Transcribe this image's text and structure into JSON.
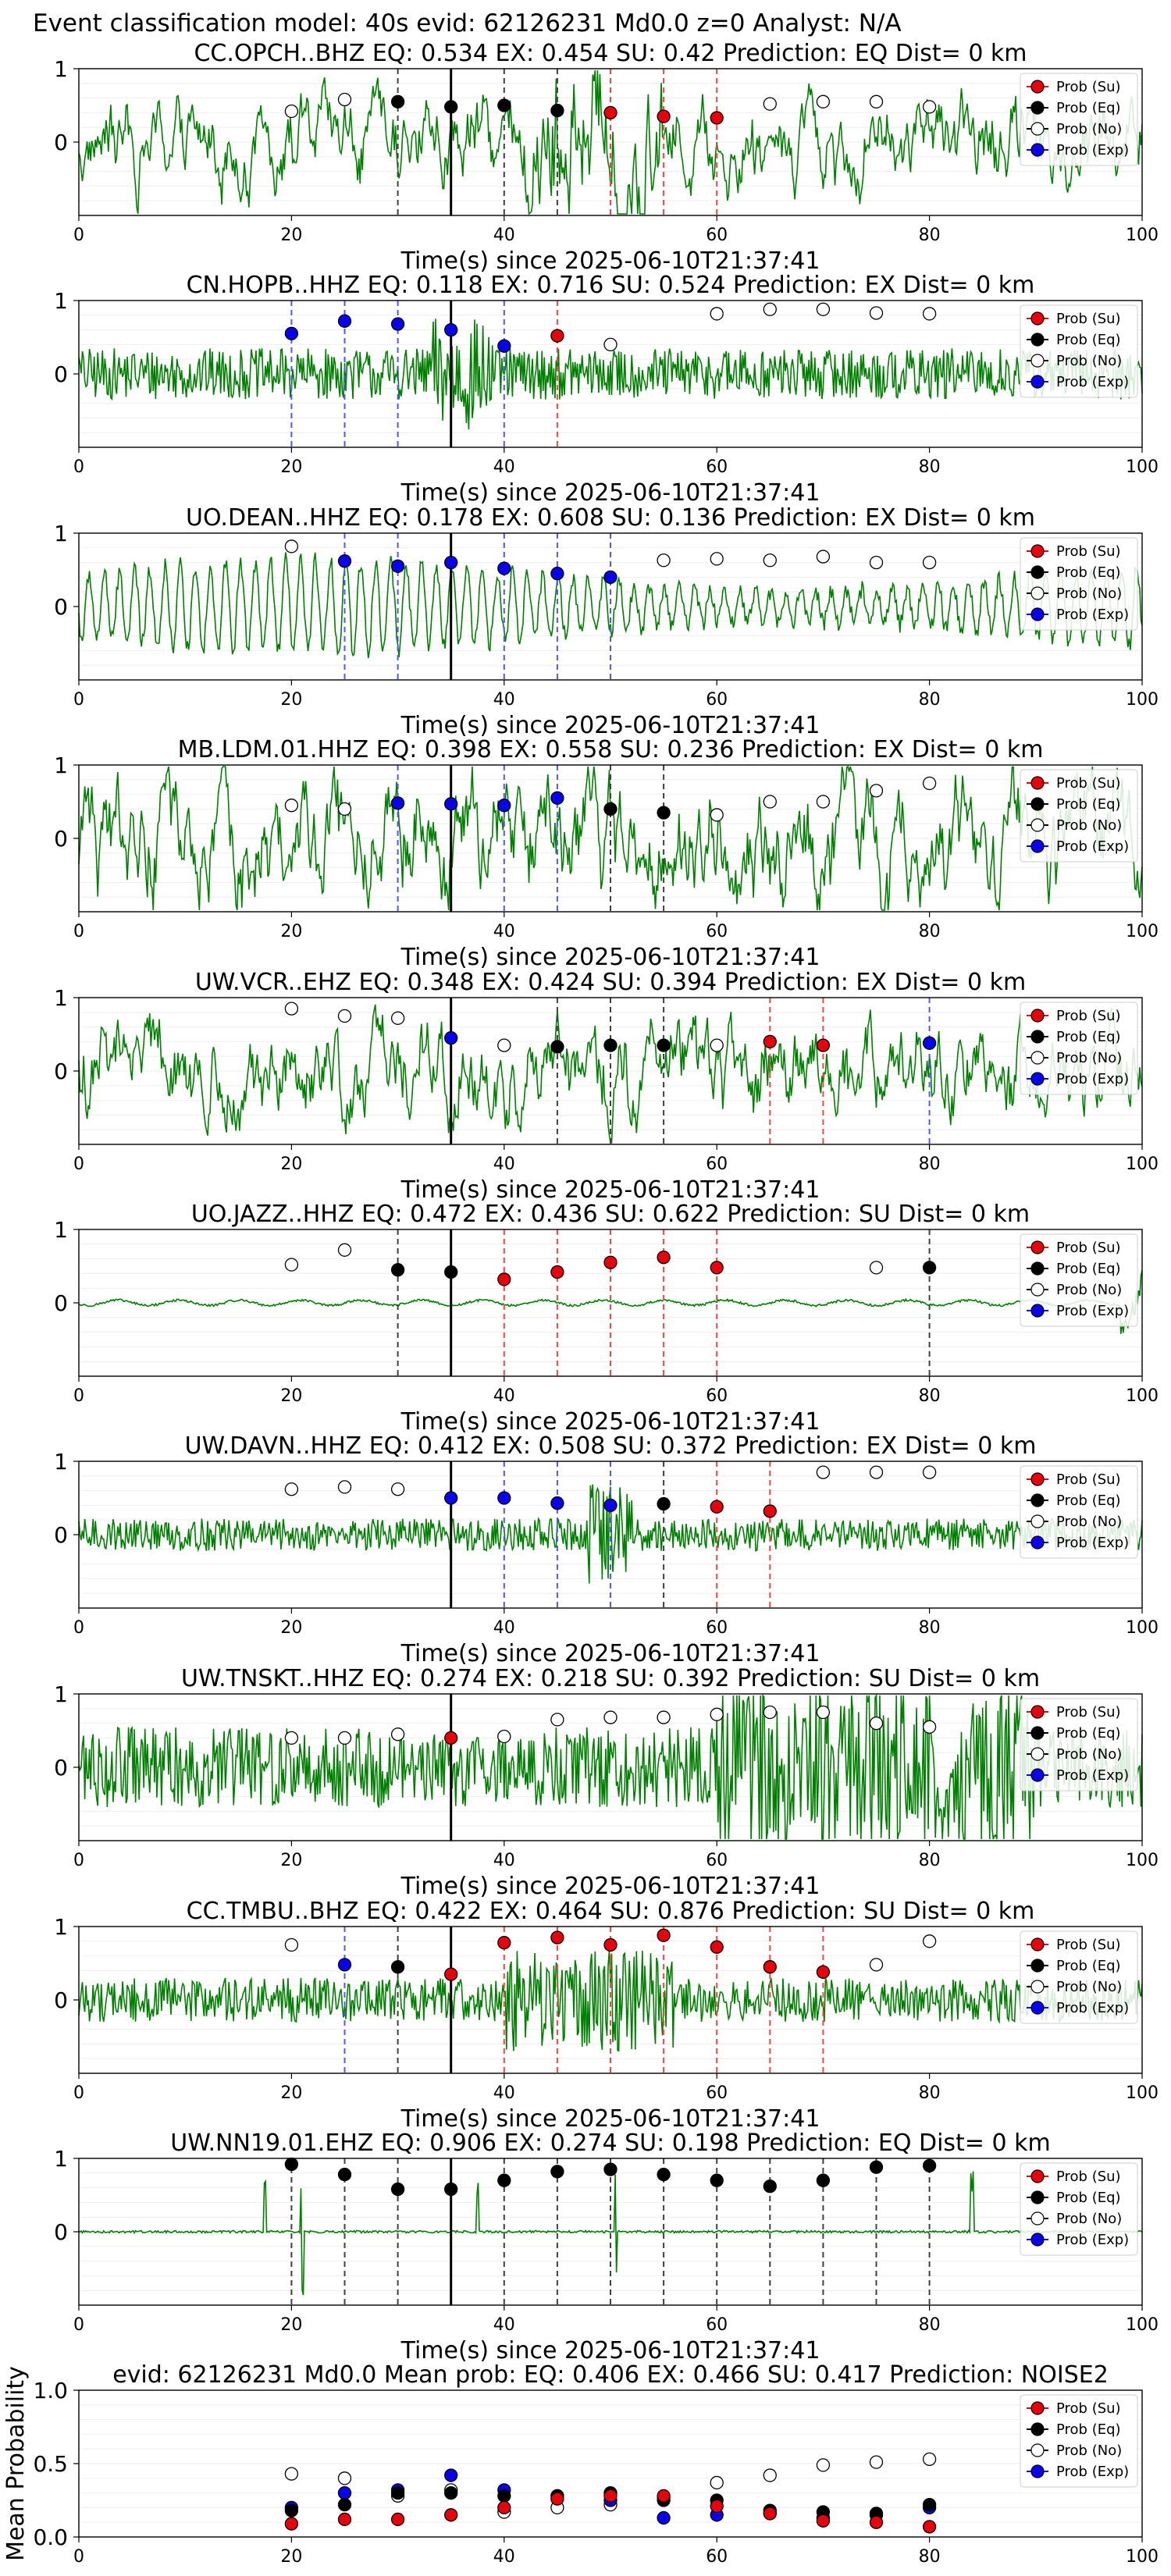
{
  "header": {
    "title": "Event classification model: 40s evid: 62126231 Md0.0 z=0 Analyst: N/A"
  },
  "legend_labels": [
    "Prob (Su)",
    "Prob (Eq)",
    "Prob (No)",
    "Prob (Exp)"
  ],
  "colors": {
    "su": "#e8000b",
    "eq": "#000000",
    "no": "#ffffff",
    "exp": "#0a00f0",
    "waveform": "#008000",
    "vline_su": "#ff4444",
    "vline_eq": "#404040",
    "vline_exp": "#5555ff",
    "origin_line": "#000000"
  },
  "chart_data": [
    {
      "type": "line",
      "title": "CC.OPCH..BHZ   EQ: 0.534   EX: 0.454   SU: 0.42   Prediction: EQ    Dist= 0 km",
      "xlabel": "Time(s) since 2025-06-10T21:37:41",
      "xlim": [
        0,
        100
      ],
      "xticks": [
        0,
        20,
        40,
        60,
        80,
        100
      ],
      "ylim": [
        -1,
        1
      ],
      "yticks": [
        0,
        1
      ],
      "origin_time": 35,
      "waveform": {
        "amplitude": 0.45,
        "style": "chaotic",
        "burst_start": 42,
        "burst_end": 55
      },
      "probability": {
        "x": [
          20,
          25,
          30,
          35,
          40,
          45,
          50,
          55,
          60,
          65,
          70,
          75,
          80
        ],
        "class": [
          "no",
          "no",
          "eq",
          "eq",
          "eq",
          "eq",
          "su",
          "su",
          "su",
          "no",
          "no",
          "no",
          "no"
        ],
        "y": [
          0.42,
          0.58,
          0.55,
          0.48,
          0.5,
          0.43,
          0.4,
          0.35,
          0.33,
          0.52,
          0.55,
          0.55,
          0.48
        ]
      },
      "legend": "top-right"
    },
    {
      "type": "line",
      "title": "CN.HOPB..HHZ   EQ: 0.118   EX: 0.716   SU: 0.524   Prediction: EX    Dist= 0 km",
      "xlabel": "Time(s) since 2025-06-10T21:37:41",
      "xlim": [
        0,
        100
      ],
      "xticks": [
        0,
        20,
        40,
        60,
        80,
        100
      ],
      "ylim": [
        -1,
        1
      ],
      "yticks": [
        0,
        1
      ],
      "origin_time": 35,
      "waveform": {
        "amplitude": 0.35,
        "style": "noise",
        "burst_start": 33,
        "burst_end": 39
      },
      "probability": {
        "x": [
          20,
          25,
          30,
          35,
          40,
          45,
          50,
          60,
          65,
          70,
          75,
          80
        ],
        "class": [
          "exp",
          "exp",
          "exp",
          "exp",
          "exp",
          "su",
          "no",
          "no",
          "no",
          "no",
          "no",
          "no"
        ],
        "y": [
          0.55,
          0.72,
          0.68,
          0.6,
          0.38,
          0.52,
          0.4,
          0.82,
          0.88,
          0.88,
          0.83,
          0.82
        ]
      },
      "legend": "top-right"
    },
    {
      "type": "line",
      "title": "UO.DEAN..HHZ   EQ: 0.178   EX: 0.608   SU: 0.136   Prediction: EX    Dist= 0 km",
      "xlabel": "Time(s) since 2025-06-10T21:37:41",
      "xlim": [
        0,
        100
      ],
      "xticks": [
        0,
        20,
        40,
        60,
        80,
        100
      ],
      "ylim": [
        -1,
        1
      ],
      "yticks": [
        0,
        1
      ],
      "origin_time": 35,
      "waveform": {
        "amplitude": 0.7,
        "style": "wavy",
        "burst_start": 0,
        "burst_end": 0
      },
      "probability": {
        "x": [
          20,
          25,
          30,
          35,
          40,
          45,
          50,
          55,
          60,
          65,
          70,
          75,
          80
        ],
        "class": [
          "no",
          "exp",
          "exp",
          "exp",
          "exp",
          "exp",
          "exp",
          "no",
          "no",
          "no",
          "no",
          "no",
          "no"
        ],
        "y": [
          0.82,
          0.62,
          0.55,
          0.6,
          0.52,
          0.45,
          0.4,
          0.63,
          0.65,
          0.63,
          0.68,
          0.6,
          0.6
        ]
      },
      "legend": "top-right"
    },
    {
      "type": "line",
      "title": "MB.LDM.01.HHZ   EQ: 0.398   EX: 0.558   SU: 0.236   Prediction: EX    Dist= 0 km",
      "xlabel": "Time(s) since 2025-06-10T21:37:41",
      "xlim": [
        0,
        100
      ],
      "xticks": [
        0,
        20,
        40,
        60,
        80,
        100
      ],
      "ylim": [
        -1,
        1
      ],
      "yticks": [
        0,
        1
      ],
      "origin_time": 35,
      "waveform": {
        "amplitude": 0.6,
        "style": "chaotic",
        "burst_start": 0,
        "burst_end": 0
      },
      "probability": {
        "x": [
          20,
          25,
          30,
          35,
          40,
          45,
          50,
          55,
          60,
          65,
          70,
          75,
          80
        ],
        "class": [
          "no",
          "no",
          "exp",
          "exp",
          "exp",
          "exp",
          "eq",
          "eq",
          "no",
          "no",
          "no",
          "no",
          "no"
        ],
        "y": [
          0.45,
          0.4,
          0.48,
          0.47,
          0.45,
          0.55,
          0.4,
          0.35,
          0.32,
          0.5,
          0.5,
          0.65,
          0.75
        ]
      },
      "legend": "top-right"
    },
    {
      "type": "line",
      "title": "UW.VCR..EHZ   EQ: 0.348   EX: 0.424   SU: 0.394    Prediction: EX    Dist= 0 km",
      "xlabel": "Time(s) since 2025-06-10T21:37:41",
      "xlim": [
        0,
        100
      ],
      "xticks": [
        0,
        20,
        40,
        60,
        80,
        100
      ],
      "ylim": [
        -1,
        1
      ],
      "yticks": [
        0,
        1
      ],
      "origin_time": 35,
      "waveform": {
        "amplitude": 0.5,
        "style": "chaotic",
        "burst_start": 0,
        "burst_end": 0
      },
      "probability": {
        "x": [
          20,
          25,
          30,
          35,
          40,
          45,
          50,
          55,
          60,
          65,
          70,
          80
        ],
        "class": [
          "no",
          "no",
          "no",
          "exp",
          "no",
          "eq",
          "eq",
          "eq",
          "no",
          "su",
          "su",
          "exp"
        ],
        "y": [
          0.85,
          0.75,
          0.72,
          0.45,
          0.35,
          0.33,
          0.35,
          0.35,
          0.35,
          0.4,
          0.35,
          0.38
        ]
      },
      "legend": "top-right"
    },
    {
      "type": "line",
      "title": "UO.JAZZ..HHZ   EQ: 0.472   EX: 0.436   SU: 0.622    Prediction: SU    Dist= 0 km",
      "xlabel": "Time(s) since 2025-06-10T21:37:41",
      "xlim": [
        0,
        100
      ],
      "xticks": [
        0,
        20,
        40,
        60,
        80,
        100
      ],
      "ylim": [
        -1,
        1
      ],
      "yticks": [
        0,
        1
      ],
      "origin_time": 35,
      "waveform": {
        "amplitude": 0.06,
        "style": "quiet",
        "burst_start": 98,
        "burst_end": 100
      },
      "probability": {
        "x": [
          20,
          25,
          30,
          35,
          40,
          45,
          50,
          55,
          60,
          75,
          80
        ],
        "class": [
          "no",
          "no",
          "eq",
          "eq",
          "su",
          "su",
          "su",
          "su",
          "su",
          "no",
          "eq"
        ],
        "y": [
          0.52,
          0.72,
          0.45,
          0.42,
          0.32,
          0.42,
          0.55,
          0.62,
          0.48,
          0.48,
          0.48
        ]
      },
      "legend": "top-right"
    },
    {
      "type": "line",
      "title": "UW.DAVN..HHZ   EQ: 0.412   EX: 0.508   SU: 0.372    Prediction: EX    Dist= 0 km",
      "xlabel": "Time(s) since 2025-06-10T21:37:41",
      "xlim": [
        0,
        100
      ],
      "xticks": [
        0,
        20,
        40,
        60,
        80,
        100
      ],
      "ylim": [
        -1,
        1
      ],
      "yticks": [
        0,
        1
      ],
      "origin_time": 35,
      "waveform": {
        "amplitude": 0.22,
        "style": "noise",
        "burst_start": 48,
        "burst_end": 52
      },
      "probability": {
        "x": [
          20,
          25,
          30,
          35,
          40,
          45,
          50,
          55,
          60,
          65,
          70,
          75,
          80
        ],
        "class": [
          "no",
          "no",
          "no",
          "exp",
          "exp",
          "exp",
          "exp",
          "eq",
          "su",
          "su",
          "no",
          "no",
          "no"
        ],
        "y": [
          0.62,
          0.65,
          0.62,
          0.5,
          0.5,
          0.43,
          0.4,
          0.42,
          0.38,
          0.32,
          0.85,
          0.85,
          0.85
        ]
      },
      "legend": "top-right"
    },
    {
      "type": "line",
      "title": "UW.TNSKT..HHZ   EQ: 0.274   EX: 0.218   SU: 0.392    Prediction: SU    Dist= 0 km",
      "xlabel": "Time(s) since 2025-06-10T21:37:41",
      "xlim": [
        0,
        100
      ],
      "xticks": [
        0,
        20,
        40,
        60,
        80,
        100
      ],
      "ylim": [
        -1,
        1
      ],
      "yticks": [
        0,
        1
      ],
      "origin_time": 35,
      "waveform": {
        "amplitude": 0.55,
        "style": "noise",
        "burst_start": 60,
        "burst_end": 90
      },
      "probability": {
        "x": [
          20,
          25,
          30,
          35,
          40,
          45,
          50,
          55,
          60,
          65,
          70,
          75,
          80
        ],
        "class": [
          "no",
          "no",
          "no",
          "su",
          "no",
          "no",
          "no",
          "no",
          "no",
          "no",
          "no",
          "no",
          "no"
        ],
        "y": [
          0.4,
          0.4,
          0.45,
          0.4,
          0.42,
          0.65,
          0.68,
          0.68,
          0.72,
          0.75,
          0.75,
          0.6,
          0.55
        ]
      },
      "legend": "top-right"
    },
    {
      "type": "line",
      "title": "CC.TMBU..BHZ   EQ: 0.422   EX: 0.464   SU: 0.876    Prediction: SU    Dist= 0 km",
      "xlabel": "Time(s) since 2025-06-10T21:37:41",
      "xlim": [
        0,
        100
      ],
      "xticks": [
        0,
        20,
        40,
        60,
        80,
        100
      ],
      "ylim": [
        -1,
        1
      ],
      "yticks": [
        0,
        1
      ],
      "origin_time": 35,
      "waveform": {
        "amplitude": 0.3,
        "style": "noise",
        "burst_start": 40,
        "burst_end": 56
      },
      "probability": {
        "x": [
          20,
          25,
          30,
          35,
          40,
          45,
          50,
          55,
          60,
          65,
          70,
          75,
          80
        ],
        "class": [
          "no",
          "exp",
          "eq",
          "su",
          "su",
          "su",
          "su",
          "su",
          "su",
          "su",
          "su",
          "no",
          "no"
        ],
        "y": [
          0.75,
          0.48,
          0.45,
          0.35,
          0.78,
          0.85,
          0.75,
          0.88,
          0.72,
          0.45,
          0.38,
          0.48,
          0.8
        ]
      },
      "legend": "top-right"
    },
    {
      "type": "line",
      "title": "UW.NN19.01.EHZ   EQ: 0.906   EX: 0.274   SU: 0.198    Prediction: EQ    Dist= 0 km",
      "xlabel": "Time(s) since 2025-06-10T21:37:41",
      "xlim": [
        0,
        100
      ],
      "xticks": [
        0,
        20,
        40,
        60,
        80,
        100
      ],
      "ylim": [
        -1,
        1
      ],
      "yticks": [
        0,
        1
      ],
      "origin_time": 35,
      "waveform": {
        "amplitude": 0.04,
        "style": "spiky",
        "burst_start": 0,
        "burst_end": 0
      },
      "probability": {
        "x": [
          20,
          25,
          30,
          35,
          40,
          45,
          50,
          55,
          60,
          65,
          70,
          75,
          80
        ],
        "class": [
          "eq",
          "eq",
          "eq",
          "eq",
          "eq",
          "eq",
          "eq",
          "eq",
          "eq",
          "eq",
          "eq",
          "eq",
          "eq"
        ],
        "y": [
          0.92,
          0.78,
          0.58,
          0.58,
          0.7,
          0.82,
          0.85,
          0.78,
          0.7,
          0.62,
          0.7,
          0.88,
          0.9
        ]
      },
      "legend": "top-right"
    },
    {
      "type": "scatter",
      "title": "evid: 62126231   Md0.0   Mean prob:   EQ: 0.406   EX: 0.466   SU: 0.417   Prediction: NOISE2",
      "ylabel": "Mean Probability",
      "xlim": [
        0,
        100
      ],
      "xticks": [
        0,
        20,
        40,
        60,
        80,
        100
      ],
      "ylim": [
        0,
        1
      ],
      "yticks": [
        0.0,
        0.5,
        1.0
      ],
      "ytick_labels": [
        "0.0",
        "0.5",
        "1.0"
      ],
      "x": [
        20,
        25,
        30,
        35,
        40,
        45,
        50,
        55,
        60,
        65,
        70,
        75,
        80
      ],
      "series": [
        {
          "class": "no",
          "values": [
            0.43,
            0.4,
            0.28,
            0.32,
            0.17,
            0.2,
            0.22,
            0.27,
            0.37,
            0.42,
            0.49,
            0.51,
            0.53
          ]
        },
        {
          "class": "exp",
          "values": [
            0.2,
            0.3,
            0.32,
            0.42,
            0.32,
            0.28,
            0.25,
            0.13,
            0.15,
            0.16,
            0.13,
            0.15,
            0.2
          ]
        },
        {
          "class": "eq",
          "values": [
            0.18,
            0.22,
            0.3,
            0.3,
            0.28,
            0.28,
            0.3,
            0.25,
            0.25,
            0.18,
            0.17,
            0.16,
            0.22
          ]
        },
        {
          "class": "su",
          "values": [
            0.09,
            0.12,
            0.12,
            0.15,
            0.2,
            0.26,
            0.28,
            0.28,
            0.21,
            0.16,
            0.11,
            0.1,
            0.07
          ]
        }
      ],
      "legend": "top-right"
    }
  ]
}
